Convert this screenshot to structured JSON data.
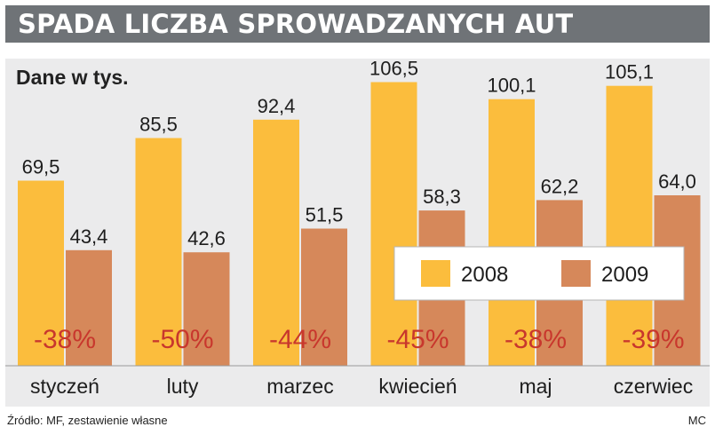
{
  "header": {
    "title": "SPADA LICZBA SPROWADZANYCH AUT"
  },
  "footer": {
    "source": "Źródło: MF, zestawienie własne",
    "credit": "MC"
  },
  "chart_data": {
    "type": "bar",
    "title": "SPADA LICZBA SPROWADZANYCH AUT",
    "unit_label": "Dane w tys.",
    "categories": [
      "styczeń",
      "luty",
      "marzec",
      "kwiecień",
      "maj",
      "czerwiec"
    ],
    "series": [
      {
        "name": "2008",
        "values": [
          69.5,
          85.5,
          92.4,
          106.5,
          100.1,
          105.1
        ],
        "labels": [
          "69,5",
          "85,5",
          "92,4",
          "106,5",
          "100,1",
          "105,1"
        ],
        "color": "#fbbd3d"
      },
      {
        "name": "2009",
        "values": [
          43.4,
          42.6,
          51.5,
          58.3,
          62.2,
          64.0
        ],
        "labels": [
          "43,4",
          "42,6",
          "51,5",
          "58,3",
          "62,2",
          "64,0"
        ],
        "color": "#d6885a"
      }
    ],
    "change_labels": [
      "-38%",
      "-50%",
      "-44%",
      "-45%",
      "-38%",
      "-39%"
    ],
    "change_color": "#c8372d",
    "legend_position": "center-right",
    "ylim": [
      0,
      110
    ],
    "grid": false
  }
}
